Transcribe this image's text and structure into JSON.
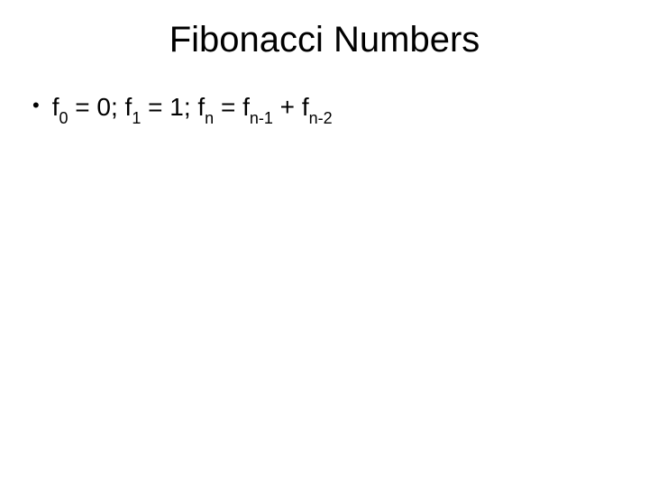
{
  "slide": {
    "title": "Fibonacci Numbers",
    "title_fontsize": 40,
    "title_color": "#000000",
    "background_color": "#ffffff",
    "bullet_char": "•",
    "formula": {
      "parts": [
        {
          "base": "f",
          "sub": "0"
        },
        {
          "text": " = 0; "
        },
        {
          "base": "f",
          "sub": "1"
        },
        {
          "text": " = 1; "
        },
        {
          "base": "f",
          "sub": "n"
        },
        {
          "text": " = "
        },
        {
          "base": "f",
          "sub": "n-1"
        },
        {
          "text": " + "
        },
        {
          "base": "f",
          "sub": "n-2"
        }
      ],
      "body_fontsize": 28,
      "sub_fontsize": 18,
      "text_color": "#000000"
    }
  }
}
